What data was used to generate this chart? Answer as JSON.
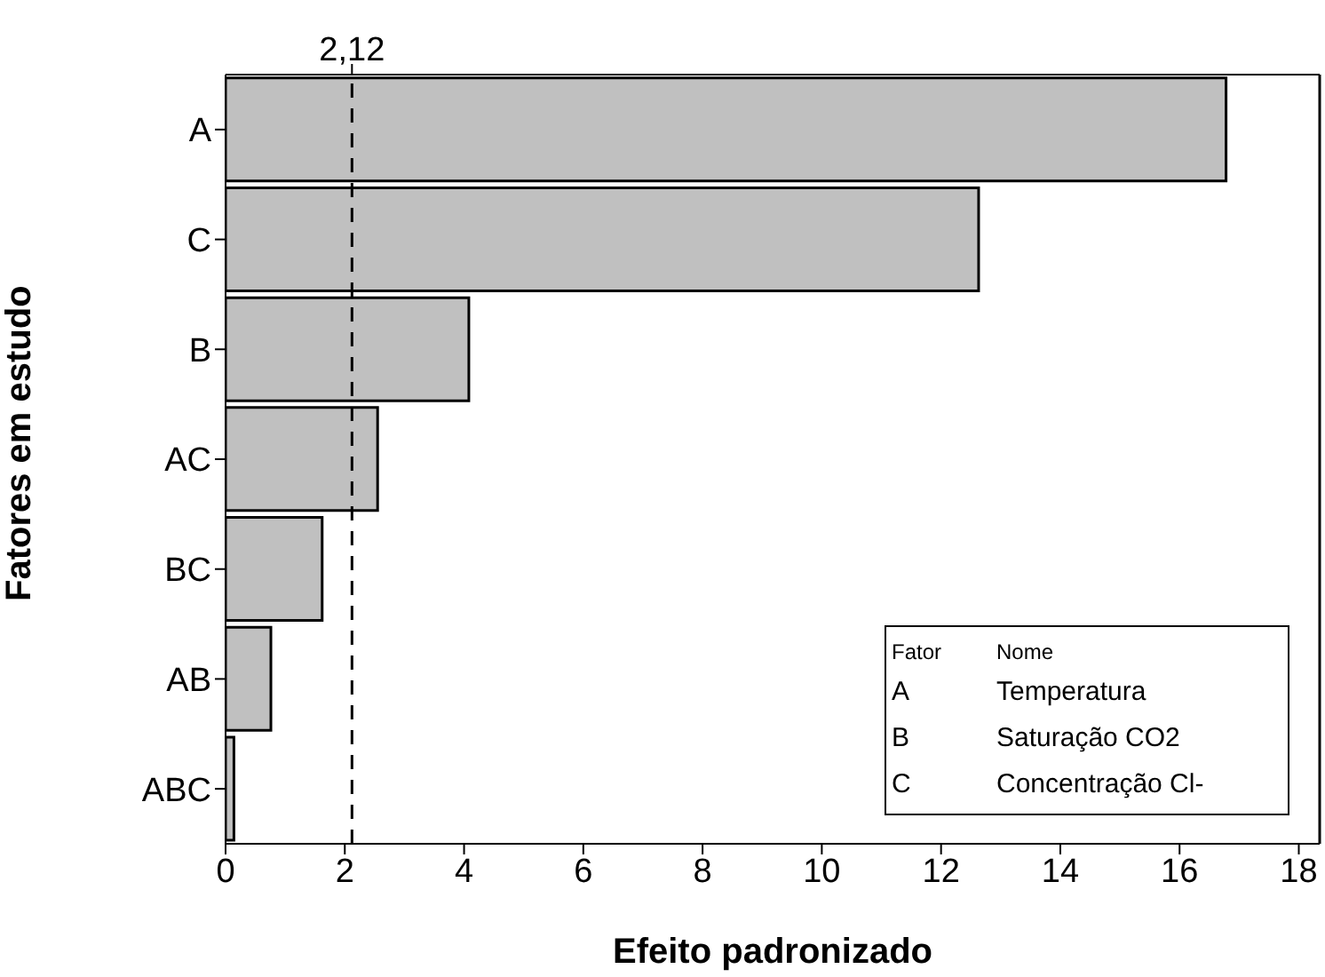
{
  "chart_data": {
    "type": "bar",
    "orientation": "horizontal",
    "xlabel": "Efeito padronizado",
    "ylabel": "Fatores em estudo",
    "categories": [
      "A",
      "C",
      "B",
      "AC",
      "BC",
      "AB",
      "ABC"
    ],
    "values": [
      16.78,
      12.63,
      4.08,
      2.55,
      1.62,
      0.76,
      0.14
    ],
    "color": "#c0c0c0",
    "xlim": [
      0,
      18.35
    ],
    "xticks": [
      0,
      2,
      4,
      6,
      8,
      10,
      12,
      14,
      16,
      18
    ],
    "ref_lines": [
      {
        "axis": "x",
        "value": 2.12,
        "label": "2,12",
        "line_style": "dashed"
      }
    ],
    "annotations": [
      "Fator",
      "Nome",
      "A",
      "Temperatura",
      "B",
      "Saturação CO2",
      "C",
      "Concentração Cl-"
    ],
    "grid": false,
    "legend": false
  }
}
